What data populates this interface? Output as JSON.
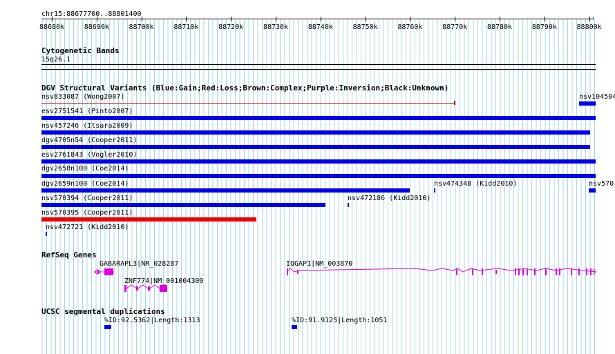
{
  "ruler": {
    "region": "chr15:88677700..88801400",
    "ticks": [
      "88680k",
      "88690k",
      "88700k",
      "88710k",
      "88720k",
      "88730k",
      "88740k",
      "88750k",
      "88760k",
      "88770k",
      "88780k",
      "88790k",
      "88800k"
    ]
  },
  "cytobands": {
    "title": "Cytogenetic Bands",
    "band": "15q26.1"
  },
  "dgv": {
    "title": "DGV Structural Variants (Blue:Gain;Red:Loss;Brown:Complex;Purple:Inversion;Black:Unknown)",
    "features": [
      {
        "label": "nsv833087 (Wong2007)",
        "color": "#cc0000"
      },
      {
        "label": "nsv104504",
        "color": "#0000ee"
      },
      {
        "label": "esv2751541 (Pinto2007)",
        "color": "#0000ee"
      },
      {
        "label": "nsv457246 (Itsara2009)",
        "color": "#0000ee"
      },
      {
        "label": "dgv4705n54 (Cooper2011)",
        "color": "#0000ee"
      },
      {
        "label": "esv2761843 (Vogler2010)",
        "color": "#0000ee"
      },
      {
        "label": "dgv2658n100 (Coe2014)",
        "color": "#0000ee"
      },
      {
        "label": "dgv2659n100 (Coe2014)",
        "color": "#0000ee"
      },
      {
        "label": "nsv474348 (Kidd2010)",
        "color": "#0000ee"
      },
      {
        "label": "nsv570",
        "color": "#0000ee"
      },
      {
        "label": "nsv570394 (Cooper2011)",
        "color": "#0000ee"
      },
      {
        "label": "nsv472186 (Kidd2010)",
        "color": "#0000ee"
      },
      {
        "label": "nsv570395 (Cooper2011)",
        "color": "#ee0000"
      },
      {
        "label": "nsv472721 (Kidd2010)",
        "color": "#0000ee"
      }
    ]
  },
  "refseq": {
    "title": "RefSeq Genes",
    "genes": [
      {
        "label": "GABARAPL3|NR_028287"
      },
      {
        "label": "ZNF774|NM_001004309"
      },
      {
        "label": "IQGAP1|NM_003870"
      }
    ],
    "color": "#dd00dd"
  },
  "segdups": {
    "title": "UCSC segmental duplications",
    "items": [
      {
        "label": "%ID:92.5362|Length:1313"
      },
      {
        "label": "%ID:91.9125|Length:1051"
      }
    ]
  }
}
